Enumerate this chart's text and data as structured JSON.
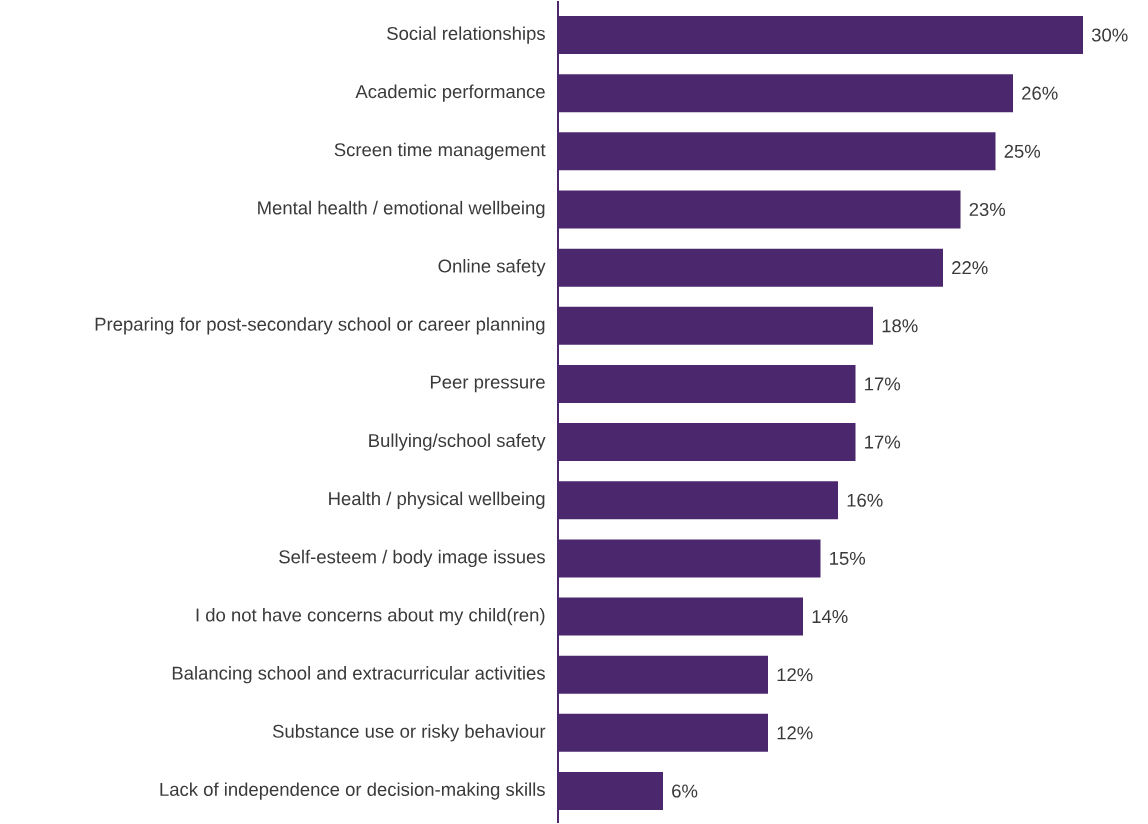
{
  "chart_data": {
    "type": "bar",
    "orientation": "horizontal",
    "color": "#4b286d",
    "categories": [
      "Social relationships",
      "Academic performance",
      "Screen time management",
      "Mental health / emotional wellbeing",
      "Online safety",
      "Preparing for post-secondary school or career planning",
      "Peer pressure",
      "Bullying/school safety",
      "Health / physical wellbeing",
      "Self-esteem / body image issues",
      "I do not have concerns about my child(ren)",
      "Balancing school and extracurricular activities",
      "Substance use or risky behaviour",
      "Lack of independence or decision-making skills"
    ],
    "values": [
      30,
      26,
      25,
      23,
      22,
      18,
      17,
      17,
      16,
      15,
      14,
      12,
      12,
      6
    ],
    "value_labels": [
      "30%",
      "26%",
      "25%",
      "23%",
      "22%",
      "18%",
      "17%",
      "17%",
      "16%",
      "15%",
      "14%",
      "12%",
      "12%",
      "6%"
    ]
  }
}
